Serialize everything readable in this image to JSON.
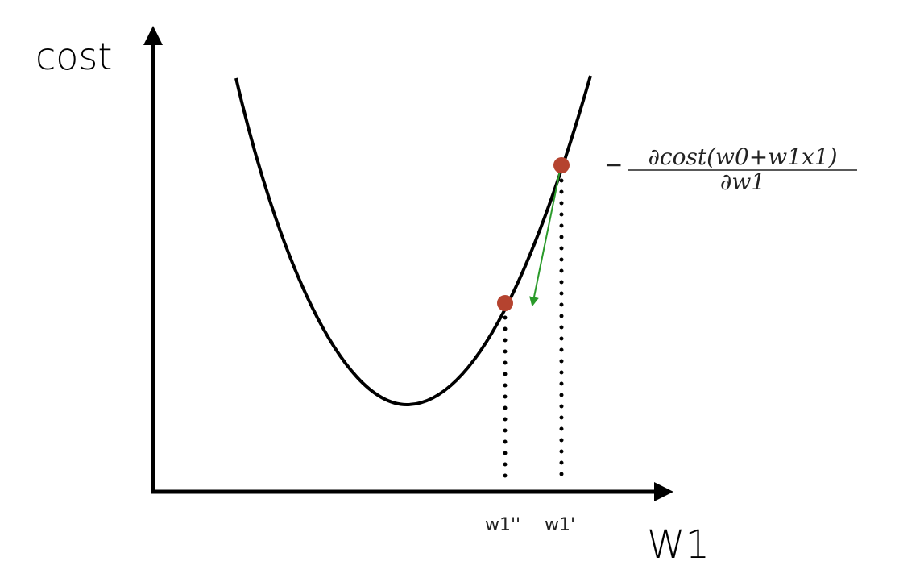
{
  "axes": {
    "y_label": "cost",
    "x_label": "W1"
  },
  "ticks": {
    "w1_new": "w1''",
    "w1_old": "w1'"
  },
  "formula": {
    "sign": "−",
    "numerator": "∂cost(w0+w1x1)",
    "denominator": "∂w1"
  }
}
